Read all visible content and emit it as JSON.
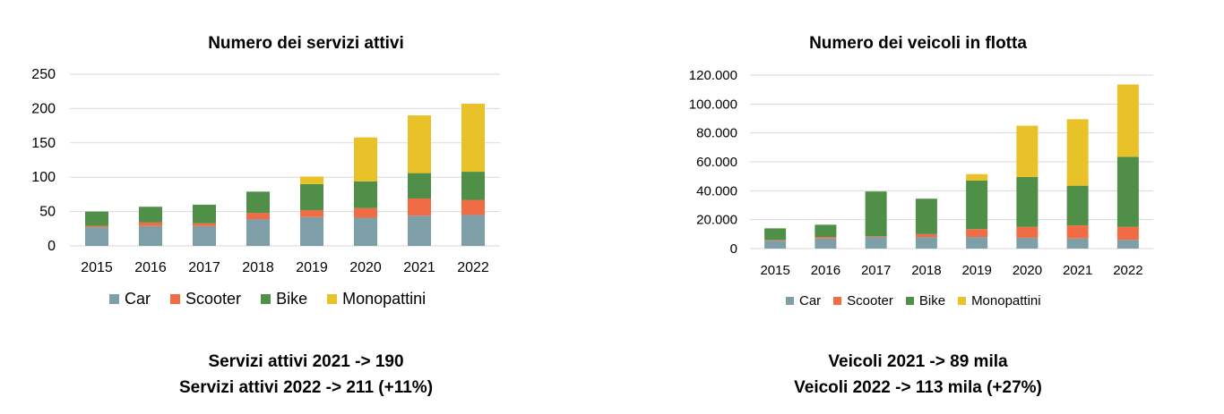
{
  "series_colors": {
    "Car": "#7f9fa8",
    "Scooter": "#ef6c45",
    "Bike": "#4f8f47",
    "Monopattini": "#e8c228"
  },
  "chart_data": [
    {
      "type": "bar",
      "stacked": true,
      "title": "Numero dei servizi attivi",
      "xlabel": "",
      "ylabel": "",
      "categories": [
        "2015",
        "2016",
        "2017",
        "2018",
        "2019",
        "2020",
        "2021",
        "2022"
      ],
      "series": [
        {
          "name": "Car",
          "values": [
            27,
            29,
            29,
            39,
            42,
            41,
            44,
            45
          ]
        },
        {
          "name": "Scooter",
          "values": [
            2,
            5,
            4,
            9,
            10,
            14,
            25,
            22
          ]
        },
        {
          "name": "Bike",
          "values": [
            21,
            23,
            27,
            31,
            38,
            39,
            37,
            41
          ]
        },
        {
          "name": "Monopattini",
          "values": [
            0,
            0,
            0,
            0,
            11,
            64,
            84,
            99
          ]
        }
      ],
      "ylim": [
        0,
        250
      ],
      "ytick_labels": [
        "0",
        "50",
        "100",
        "150",
        "200",
        "250"
      ],
      "grid": true,
      "legend_position": "bottom"
    },
    {
      "type": "bar",
      "stacked": true,
      "title": "Numero dei veicoli in flotta",
      "xlabel": "",
      "ylabel": "",
      "categories": [
        "2015",
        "2016",
        "2017",
        "2018",
        "2019",
        "2020",
        "2021",
        "2022"
      ],
      "series": [
        {
          "name": "Car",
          "values": [
            5500,
            7000,
            8000,
            8000,
            8000,
            7500,
            7000,
            6000
          ]
        },
        {
          "name": "Scooter",
          "values": [
            500,
            1000,
            500,
            2000,
            5500,
            7500,
            9000,
            9000
          ]
        },
        {
          "name": "Bike",
          "values": [
            8000,
            8500,
            31000,
            24500,
            33500,
            34500,
            27500,
            48500
          ]
        },
        {
          "name": "Monopattini",
          "values": [
            0,
            0,
            0,
            0,
            4500,
            35500,
            46000,
            50000
          ]
        }
      ],
      "ylim": [
        0,
        120000
      ],
      "ytick_labels": [
        "0",
        "20.000",
        "40.000",
        "60.000",
        "80.000",
        "100.000",
        "120.000"
      ],
      "grid": true,
      "legend_position": "bottom"
    }
  ],
  "left": {
    "title": "Numero dei servizi attivi",
    "legend": [
      "Car",
      "Scooter",
      "Bike",
      "Monopattini"
    ],
    "summary_line1": "Servizi attivi 2021 -> 190",
    "summary_line2": "Servizi attivi 2022 -> 211 (+11%)"
  },
  "right": {
    "title": "Numero dei veicoli in flotta",
    "legend": [
      "Car",
      "Scooter",
      "Bike",
      "Monopattini"
    ],
    "summary_line1": "Veicoli 2021 -> 89 mila",
    "summary_line2": "Veicoli 2022 -> 113 mila (+27%)"
  }
}
